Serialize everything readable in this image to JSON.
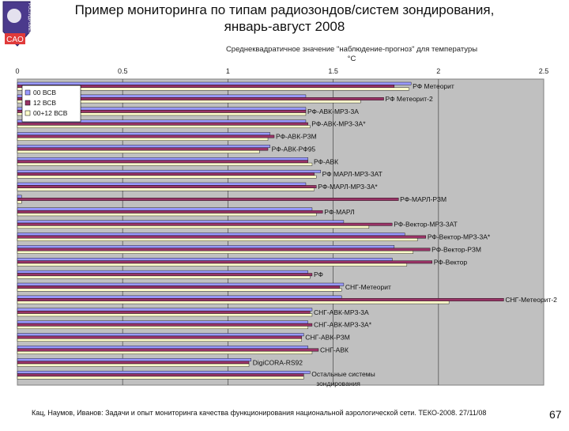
{
  "slide": {
    "title_line1": "Пример мониторинга по типам радиозондов/систем зондирования,",
    "title_line2": "январь-август 2008",
    "logo_text": "CAO",
    "logo_side_text": "РОСГИДРОМЕТ",
    "footer": "Кац, Наумов, Иванов: Задачи и опыт мониторинга качества функционирования национальной аэрологической сети. ТЕКО-2008. 27/11/08",
    "page_number": "67"
  },
  "colors": {
    "series": [
      "#9999ff",
      "#993366",
      "#ffffcc"
    ],
    "plot_bg": "#c0c0c0",
    "bar_outline": "#000000"
  },
  "chart_data": {
    "type": "bar",
    "orientation": "horizontal",
    "title_line1": "Среднеквадратичное значение \"наблюдение-прогноз\" для температуры",
    "title_line2": "°С",
    "xlim": [
      0,
      2.5
    ],
    "xticks": [
      "0",
      "0.5",
      "1",
      "1.5",
      "2",
      "2.5"
    ],
    "grid": "vertical",
    "legend_position": "top-left",
    "categories": [
      "РФ Метеорит",
      "РФ Метеорит-2",
      "РФ-АВК-МРЗ-3А",
      "РФ-АВК-МРЗ-3А*",
      "РФ-АВК-РЗМ",
      "РФ-АВК-РФ95",
      "РФ-АВК",
      "РФ МАРЛ-МРЗ-3АТ",
      "РФ-МАРЛ-МРЗ-3А*",
      "РФ-МАРЛ-РЗМ",
      "РФ-МАРЛ",
      "РФ-Вектор-МРЗ-3АТ",
      "РФ-Вектор-МРЗ-3А*",
      "РФ-Вектор-РЗМ",
      "РФ-Вектор",
      "РФ",
      "СНГ-Метеорит",
      "СНГ-Метеорит-2",
      "СНГ-АВК-МРЗ-3А",
      "СНГ-АВК-МРЗ-3А*",
      "СНГ-АВК-РЗМ",
      "СНГ-АВК",
      "DigiCORA-RS92",
      "Остальные системы зондирования"
    ],
    "series": [
      {
        "name": "00 ВСВ",
        "values": [
          1.87,
          1.37,
          1.37,
          1.37,
          1.2,
          1.2,
          1.38,
          1.44,
          1.37,
          0.02,
          1.4,
          1.55,
          1.84,
          1.79,
          1.78,
          1.38,
          1.55,
          1.54,
          1.4,
          1.38,
          1.36,
          1.38,
          1.11,
          1.39
        ]
      },
      {
        "name": "12 ВСВ",
        "values": [
          1.79,
          1.74,
          1.37,
          1.38,
          1.22,
          1.19,
          1.38,
          1.41,
          1.42,
          1.81,
          1.45,
          1.78,
          1.94,
          1.96,
          1.97,
          1.4,
          1.53,
          2.31,
          1.39,
          1.4,
          1.35,
          1.43,
          1.1,
          1.36
        ]
      },
      {
        "name": "00+12 ВСВ",
        "values": [
          1.86,
          1.63,
          1.37,
          1.39,
          1.19,
          1.15,
          1.4,
          1.42,
          1.41,
          0.02,
          1.42,
          1.67,
          1.9,
          1.88,
          1.85,
          1.39,
          1.54,
          2.05,
          1.4,
          1.38,
          1.35,
          1.4,
          1.1,
          1.36
        ]
      }
    ]
  }
}
